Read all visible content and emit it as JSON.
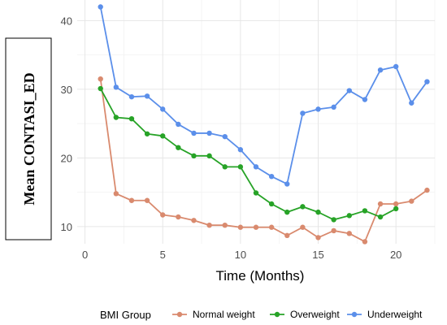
{
  "chart_data": {
    "type": "line",
    "title": "",
    "xlabel": "Time (Months)",
    "ylabel": "Mean CONTASI_ED",
    "xlim": [
      -0.5,
      22.5
    ],
    "ylim": [
      7.5,
      43
    ],
    "x_ticks": [
      0,
      5,
      10,
      15,
      20
    ],
    "y_ticks": [
      10,
      20,
      30,
      40
    ],
    "grid": true,
    "legend_title": "BMI Group",
    "legend_position": "bottom",
    "series": [
      {
        "name": "Normal weight",
        "color": "#D98A6E",
        "x": [
          1,
          2,
          3,
          4,
          5,
          6,
          7,
          8,
          9,
          10,
          11,
          12,
          13,
          14,
          15,
          16,
          17,
          18,
          19,
          20,
          21,
          22
        ],
        "values": [
          31.5,
          14.8,
          13.8,
          13.8,
          11.7,
          11.4,
          10.9,
          10.2,
          10.2,
          9.9,
          9.9,
          9.9,
          8.7,
          9.9,
          8.4,
          9.4,
          9.0,
          7.8,
          13.3,
          13.3,
          13.7,
          15.3
        ]
      },
      {
        "name": "Overweight",
        "color": "#27A327",
        "x": [
          1,
          2,
          3,
          4,
          5,
          6,
          7,
          8,
          9,
          10,
          11,
          12,
          13,
          14,
          15,
          16,
          17,
          18,
          19,
          20
        ],
        "values": [
          30.1,
          25.9,
          25.7,
          23.5,
          23.2,
          21.5,
          20.3,
          20.3,
          18.7,
          18.7,
          14.9,
          13.3,
          12.1,
          12.9,
          12.1,
          11.0,
          11.6,
          12.3,
          11.4,
          12.6
        ]
      },
      {
        "name": "Underweight",
        "color": "#5B8FEA",
        "x": [
          1,
          2,
          3,
          4,
          5,
          6,
          7,
          8,
          9,
          10,
          11,
          12,
          13,
          14,
          15,
          16,
          17,
          18,
          19,
          20,
          21,
          22
        ],
        "values": [
          42.0,
          30.3,
          28.9,
          29.0,
          27.1,
          24.9,
          23.6,
          23.6,
          23.1,
          21.2,
          18.7,
          17.3,
          16.2,
          26.5,
          27.1,
          27.4,
          29.8,
          28.5,
          32.8,
          33.3,
          28.0,
          31.1
        ]
      }
    ]
  }
}
